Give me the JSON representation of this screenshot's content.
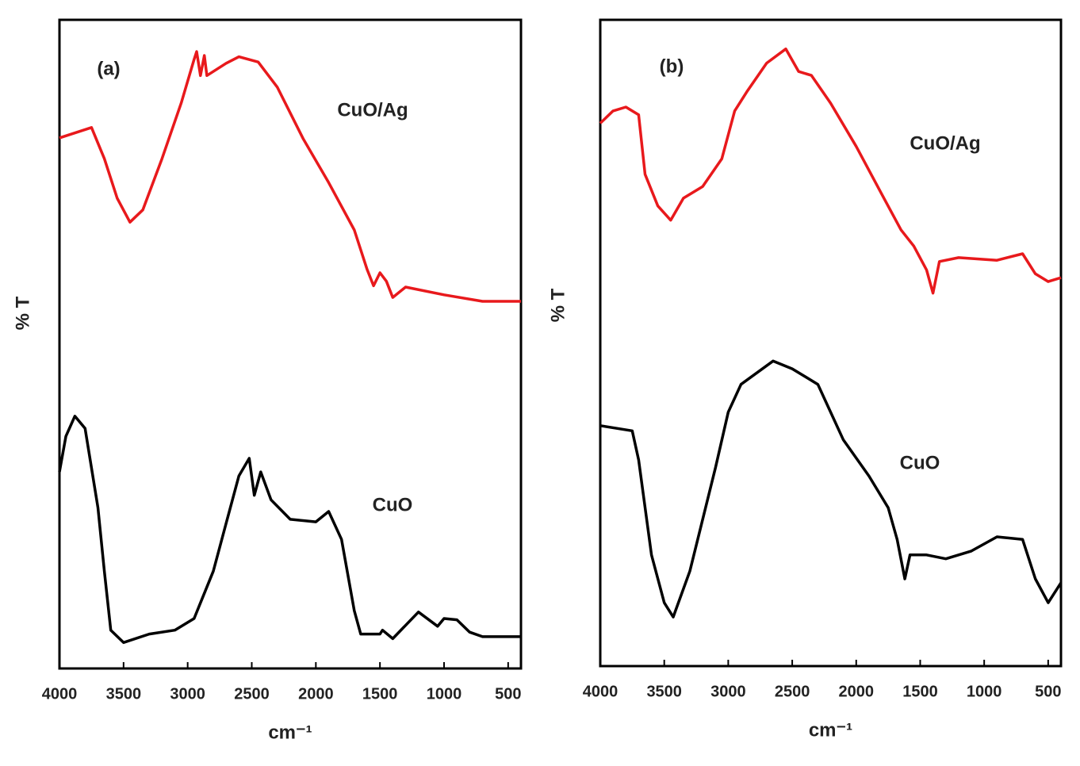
{
  "chart_data": [
    {
      "type": "line",
      "title": "(a)",
      "xlabel": "cm⁻¹",
      "ylabel": "% T",
      "xlim": [
        4000,
        400
      ],
      "xticks": [
        4000,
        3500,
        3000,
        2500,
        2000,
        1500,
        1000,
        500
      ],
      "ylim": [
        0,
        100
      ],
      "series": [
        {
          "name": "CuO/Ag",
          "color": "#e8191c",
          "x": [
            4000,
            3750,
            3650,
            3550,
            3450,
            3350,
            3200,
            3050,
            2950,
            2930,
            2900,
            2870,
            2850,
            2700,
            2600,
            2450,
            2300,
            2100,
            1900,
            1700,
            1600,
            1550,
            1500,
            1450,
            1400,
            1300,
            1000,
            700,
            400
          ],
          "values": [
            81.8,
            83.4,
            78.6,
            72.5,
            68.8,
            70.7,
            78.6,
            87.2,
            93.9,
            95.1,
            91.4,
            94.5,
            91.4,
            93.3,
            94.3,
            93.5,
            89.6,
            81.7,
            74.9,
            67.6,
            61.5,
            59.0,
            61.0,
            59.7,
            57.2,
            58.8,
            57.6,
            56.6,
            56.6
          ]
        },
        {
          "name": "CuO",
          "color": "#000000",
          "x": [
            4000,
            3950,
            3880,
            3800,
            3700,
            3650,
            3600,
            3500,
            3300,
            3100,
            2950,
            2800,
            2700,
            2600,
            2520,
            2480,
            2430,
            2350,
            2200,
            2000,
            1900,
            1800,
            1700,
            1650,
            1500,
            1480,
            1400,
            1200,
            1050,
            1000,
            900,
            800,
            700,
            400
          ],
          "values": [
            30.3,
            35.8,
            38.9,
            37.0,
            24.8,
            15.0,
            5.9,
            4.0,
            5.3,
            5.9,
            7.7,
            15.0,
            22.4,
            29.7,
            32.4,
            26.7,
            30.3,
            26.0,
            23.0,
            22.6,
            24.2,
            19.9,
            8.9,
            5.3,
            5.3,
            5.9,
            4.6,
            8.7,
            6.5,
            7.7,
            7.5,
            5.6,
            4.9,
            4.9
          ]
        }
      ]
    },
    {
      "type": "line",
      "title": "(b)",
      "xlabel": "cm⁻¹",
      "ylabel": "% T",
      "xlim": [
        4000,
        400
      ],
      "xticks": [
        4000,
        3500,
        3000,
        2500,
        2000,
        1500,
        1000,
        500
      ],
      "ylim": [
        0,
        100
      ],
      "series": [
        {
          "name": "CuO/Ag",
          "color": "#e8191c",
          "x": [
            4000,
            3900,
            3800,
            3700,
            3650,
            3550,
            3450,
            3350,
            3200,
            3050,
            2950,
            2850,
            2700,
            2550,
            2450,
            2350,
            2200,
            2000,
            1800,
            1650,
            1550,
            1450,
            1400,
            1350,
            1200,
            900,
            700,
            600,
            500,
            400
          ],
          "values": [
            84.0,
            85.9,
            86.5,
            85.3,
            76.1,
            71.2,
            69.0,
            72.4,
            74.2,
            78.5,
            85.9,
            89.0,
            93.3,
            95.5,
            92.0,
            91.4,
            87.1,
            80.4,
            73.0,
            67.5,
            65.0,
            61.3,
            57.7,
            62.6,
            63.2,
            62.8,
            63.8,
            60.7,
            59.5,
            60.1
          ]
        },
        {
          "name": "CuO",
          "color": "#000000",
          "x": [
            4000,
            3750,
            3700,
            3600,
            3500,
            3430,
            3300,
            3100,
            3000,
            2900,
            2650,
            2500,
            2300,
            2100,
            1900,
            1750,
            1680,
            1620,
            1580,
            1450,
            1300,
            1100,
            900,
            700,
            600,
            500,
            400
          ],
          "values": [
            37.2,
            36.4,
            31.9,
            17.2,
            9.8,
            7.6,
            14.7,
            30.7,
            39.3,
            43.6,
            47.2,
            46.0,
            43.6,
            35.0,
            29.4,
            24.5,
            19.6,
            13.5,
            17.2,
            17.2,
            16.6,
            17.8,
            20.0,
            19.6,
            13.5,
            9.8,
            12.9
          ]
        }
      ]
    }
  ]
}
